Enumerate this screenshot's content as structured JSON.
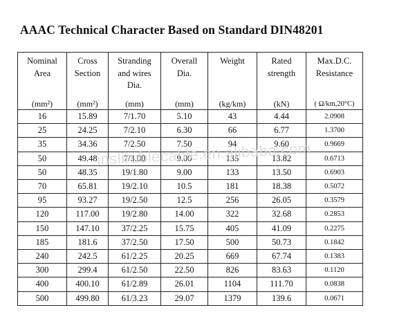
{
  "title": "AAAC Technical Character Based on Standard DIN48201",
  "watermark": "inslirublecable.en.alibaba.com",
  "headers": [
    {
      "label": "Nominal\nArea",
      "unit": "(mm²)"
    },
    {
      "label": "Cross\nSection",
      "unit": "(mm²)"
    },
    {
      "label": "Stranding\nand wires\nDia.",
      "unit": "(mm)"
    },
    {
      "label": "Overall\nDia.",
      "unit": "(mm)"
    },
    {
      "label": "Weight",
      "unit": "(kg/km)"
    },
    {
      "label": "Rated\nstrength",
      "unit": "(kN)"
    },
    {
      "label": "Max.D.C.\nResistance",
      "unit": "( Ω/km,20°C)"
    }
  ],
  "rows": [
    [
      "16",
      "15.89",
      "7/1.70",
      "5.10",
      "43",
      "4.44",
      "2.0908"
    ],
    [
      "25",
      "24.25",
      "7/2.10",
      "6.30",
      "66",
      "6.77",
      "1.3700"
    ],
    [
      "35",
      "34.36",
      "7/2.50",
      "7.50",
      "94",
      "9.60",
      "0.9669"
    ],
    [
      "50",
      "49.48",
      "7/3.00",
      "9.00",
      "135",
      "13.82",
      "0.6713"
    ],
    [
      "50",
      "48.35",
      "19/1.80",
      "9.00",
      "133",
      "13.50",
      "0.6903"
    ],
    [
      "70",
      "65.81",
      "19/2.10",
      "10.5",
      "181",
      "18.38",
      "0.5072"
    ],
    [
      "95",
      "93.27",
      "19/2.50",
      "12.5",
      "256",
      "26.05",
      "0.3579"
    ],
    [
      "120",
      "117.00",
      "19/2.80",
      "14.00",
      "322",
      "32.68",
      "0.2853"
    ],
    [
      "150",
      "147.10",
      "37/2.25",
      "15.75",
      "405",
      "41.09",
      "0.2275"
    ],
    [
      "185",
      "181.6",
      "37/2.50",
      "17.50",
      "500",
      "50.73",
      "0.1842"
    ],
    [
      "240",
      "242.5",
      "61/2.25",
      "20.25",
      "669",
      "67.74",
      "0.1383"
    ],
    [
      "300",
      "299.4",
      "61/2.50",
      "22.50",
      "826",
      "83.63",
      "0.1120"
    ],
    [
      "400",
      "400.10",
      "61/2.89",
      "26.01",
      "1104",
      "111.70",
      "0.0838"
    ],
    [
      "500",
      "499.80",
      "61/3.23",
      "29.07",
      "1379",
      "139.6",
      "0.0671"
    ]
  ]
}
